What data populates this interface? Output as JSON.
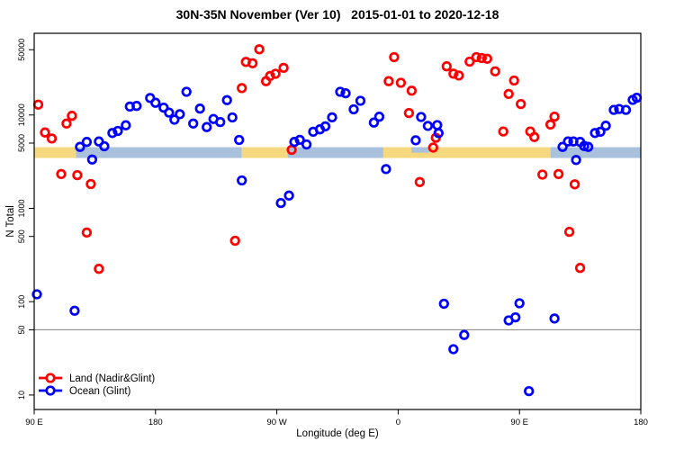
{
  "figure": {
    "title": "30N-35N November (Ver 10)   2015-01-01 to 2020-12-18",
    "x_label": "Longitude (deg E)",
    "y_label": "N Total"
  },
  "legend": {
    "items": [
      {
        "label": "Land (Nadir&Glint)",
        "color": "#ff0000"
      },
      {
        "label": "Ocean (Glint)",
        "color": "#0000ff"
      }
    ]
  },
  "chart_data": {
    "type": "scatter",
    "title": "30N-35N November (Ver 10)  2015-01-01 to 2020-12-18",
    "xlabel": "Longitude (deg E)",
    "ylabel": "N Total",
    "x_axis": {
      "note": "longitude axis spans 450 degrees starting at 90E, wrapping through 180, 90W, 0, 90E to 180",
      "range": [
        90,
        540
      ],
      "ticks": [
        {
          "value": 90,
          "label": "90 E"
        },
        {
          "value": 180,
          "label": "180"
        },
        {
          "value": 270,
          "label": "90 W"
        },
        {
          "value": 360,
          "label": "0"
        },
        {
          "value": 450,
          "label": "90 E"
        },
        {
          "value": 540,
          "label": "180"
        }
      ]
    },
    "y_axis": {
      "scale": "log",
      "range": [
        7,
        75000
      ],
      "ticks": [
        {
          "value": 10,
          "label": "10"
        },
        {
          "value": 50,
          "label": "50"
        },
        {
          "value": 100,
          "label": "100"
        },
        {
          "value": 500,
          "label": "500"
        },
        {
          "value": 1000,
          "label": "1000"
        },
        {
          "value": 5000,
          "label": "5000"
        },
        {
          "value": 10000,
          "label": "10000"
        },
        {
          "value": 50000,
          "label": "50000"
        }
      ]
    },
    "reference_line": {
      "value": 50,
      "color": "#808080"
    },
    "coast_band": {
      "top_value": 4520,
      "bottom_value": 3460,
      "land_color": "#f6d97e",
      "ocean_color": "#a9c1dd",
      "segments": [
        {
          "from": 90,
          "to": 121,
          "type": "land"
        },
        {
          "from": 121,
          "to": 244,
          "type": "ocean"
        },
        {
          "from": 244,
          "to": 278,
          "type": "land"
        },
        {
          "from": 278,
          "to": 349,
          "type": "ocean"
        },
        {
          "from": 349,
          "to": 473,
          "type": "land"
        },
        {
          "from": 473,
          "to": 540,
          "type": "ocean"
        }
      ],
      "notches": [
        {
          "from": 370,
          "to": 383,
          "type": "ocean",
          "top_value": 4520,
          "bottom_value": 3950
        }
      ]
    },
    "marker": {
      "radius": 4.3,
      "stroke_width": 2.7
    },
    "series": [
      {
        "name": "Land (Nadir&Glint)",
        "color": "#ff0000",
        "points": [
          [
            93,
            12900
          ],
          [
            98,
            6500
          ],
          [
            103,
            5600
          ],
          [
            110,
            2330
          ],
          [
            114,
            8100
          ],
          [
            118,
            9800
          ],
          [
            122,
            2270
          ],
          [
            129,
            550
          ],
          [
            132,
            1820
          ],
          [
            138,
            225
          ],
          [
            239,
            450
          ],
          [
            244,
            19400
          ],
          [
            247,
            37000
          ],
          [
            252,
            35800
          ],
          [
            257,
            50500
          ],
          [
            262,
            23000
          ],
          [
            265,
            26200
          ],
          [
            269,
            27600
          ],
          [
            275,
            32000
          ],
          [
            281,
            4230
          ],
          [
            353,
            23000
          ],
          [
            357,
            41600
          ],
          [
            362,
            22100
          ],
          [
            368,
            10500
          ],
          [
            370,
            18200
          ],
          [
            376,
            1910
          ],
          [
            386,
            4470
          ],
          [
            388,
            5700
          ],
          [
            396,
            33200
          ],
          [
            401,
            27700
          ],
          [
            405,
            26500
          ],
          [
            413,
            37300
          ],
          [
            418,
            41600
          ],
          [
            422,
            40700
          ],
          [
            426,
            40000
          ],
          [
            432,
            29300
          ],
          [
            438,
            6650
          ],
          [
            442,
            16800
          ],
          [
            446,
            23400
          ],
          [
            451,
            13100
          ],
          [
            458,
            6650
          ],
          [
            461,
            5800
          ],
          [
            467,
            2300
          ],
          [
            473,
            7900
          ],
          [
            476,
            9600
          ],
          [
            479,
            2330
          ],
          [
            487,
            560
          ],
          [
            491,
            1810
          ],
          [
            495,
            230
          ]
        ]
      },
      {
        "name": "Ocean (Glint)",
        "color": "#0000ff",
        "points": [
          [
            92,
            120
          ],
          [
            120,
            80
          ],
          [
            124,
            4550
          ],
          [
            129,
            5140
          ],
          [
            133,
            3330
          ],
          [
            138,
            5200
          ],
          [
            142,
            4620
          ],
          [
            148,
            6410
          ],
          [
            152,
            6750
          ],
          [
            158,
            7760
          ],
          [
            161,
            12300
          ],
          [
            166,
            12500
          ],
          [
            176,
            15200
          ],
          [
            180,
            13500
          ],
          [
            186,
            12000
          ],
          [
            190,
            10600
          ],
          [
            194,
            8900
          ],
          [
            198,
            10200
          ],
          [
            203,
            17700
          ],
          [
            208,
            8100
          ],
          [
            213,
            11700
          ],
          [
            218,
            7420
          ],
          [
            223,
            9060
          ],
          [
            228,
            8410
          ],
          [
            233,
            14400
          ],
          [
            237,
            9420
          ],
          [
            242,
            5400
          ],
          [
            244,
            1990
          ],
          [
            273,
            1140
          ],
          [
            279,
            1370
          ],
          [
            283,
            5140
          ],
          [
            287,
            5410
          ],
          [
            292,
            4840
          ],
          [
            297,
            6610
          ],
          [
            302,
            7020
          ],
          [
            306,
            7550
          ],
          [
            311,
            9440
          ],
          [
            317,
            17700
          ],
          [
            321,
            17100
          ],
          [
            327,
            11500
          ],
          [
            332,
            14200
          ],
          [
            342,
            8300
          ],
          [
            346,
            9580
          ],
          [
            351,
            2630
          ],
          [
            373,
            5350
          ],
          [
            377,
            9510
          ],
          [
            382,
            7640
          ],
          [
            389,
            7800
          ],
          [
            390,
            6390
          ],
          [
            394,
            95
          ],
          [
            401,
            31
          ],
          [
            409,
            44
          ],
          [
            442,
            63
          ],
          [
            447,
            68
          ],
          [
            450,
            96
          ],
          [
            457,
            11
          ],
          [
            476,
            66
          ],
          [
            482,
            4550
          ],
          [
            486,
            5200
          ],
          [
            490,
            5200
          ],
          [
            492,
            3290
          ],
          [
            495,
            5140
          ],
          [
            498,
            4660
          ],
          [
            501,
            4550
          ],
          [
            506,
            6410
          ],
          [
            510,
            6610
          ],
          [
            514,
            7670
          ],
          [
            520,
            11350
          ],
          [
            524,
            11600
          ],
          [
            529,
            11350
          ],
          [
            534,
            14500
          ],
          [
            537,
            15300
          ]
        ]
      }
    ]
  }
}
